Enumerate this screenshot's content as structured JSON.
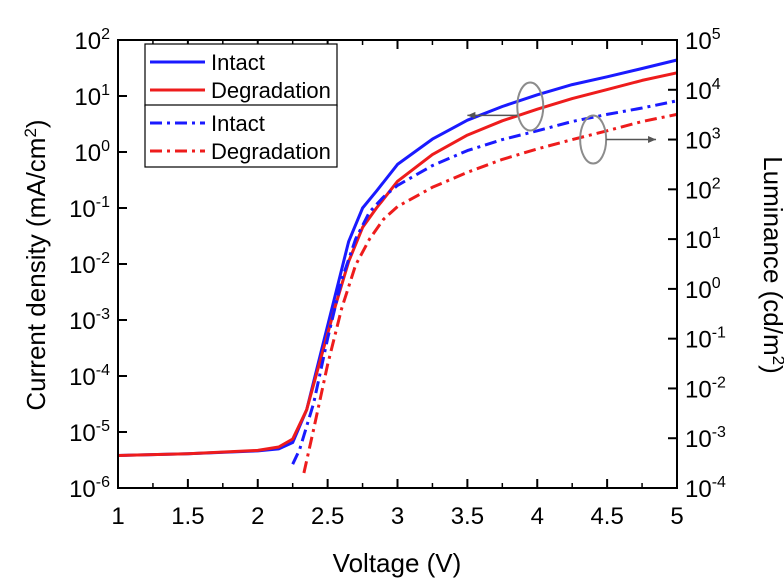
{
  "chart_data": {
    "type": "line",
    "xlabel": "Voltage (V)",
    "ylabel_left": {
      "main": "Current density (mA/cm",
      "sup": "2",
      "close": ")"
    },
    "ylabel_right": {
      "main": "Luminance (cd/m",
      "sup": "2",
      "close": ")"
    },
    "xlim": [
      1,
      5
    ],
    "xticks": [
      "1",
      "1.5",
      "2",
      "2.5",
      "3",
      "3.5",
      "4",
      "4.5",
      "5"
    ],
    "y_left": {
      "scale": "log",
      "lim_exp": [
        -6,
        2
      ],
      "tick_base": "10",
      "tick_exps": [
        "-6",
        "-5",
        "-4",
        "-3",
        "-2",
        "-1",
        "0",
        "1",
        "2"
      ]
    },
    "y_right": {
      "scale": "log",
      "lim_exp": [
        -4,
        5
      ],
      "tick_base": "10",
      "tick_exps": [
        "-4",
        "-3",
        "-2",
        "-1",
        "0",
        "1",
        "2",
        "3",
        "4",
        "5"
      ]
    },
    "legend": {
      "placement": "top-left",
      "groups": [
        [
          {
            "label": "Intact",
            "color": "#1a1aff",
            "style": "solid"
          },
          {
            "label": "Degradation",
            "color": "#ee1c1c",
            "style": "solid"
          }
        ],
        [
          {
            "label": "Intact",
            "color": "#1a1aff",
            "style": "dashdot"
          },
          {
            "label": "Degradation",
            "color": "#ee1c1c",
            "style": "dashdot"
          }
        ]
      ]
    },
    "series": [
      {
        "axis": "left",
        "color": "#1a1aff",
        "style": "solid",
        "x": [
          1.0,
          1.5,
          2.0,
          2.15,
          2.25,
          2.35,
          2.45,
          2.55,
          2.65,
          2.75,
          2.85,
          3.0,
          3.25,
          3.5,
          3.75,
          4.0,
          4.25,
          4.5,
          4.75,
          5.0
        ],
        "y": [
          3.8e-06,
          4.1e-06,
          4.6e-06,
          5e-06,
          6.5e-06,
          2.5e-05,
          0.00025,
          0.0025,
          0.025,
          0.1,
          0.2,
          0.6,
          1.7,
          3.7,
          6.5,
          10.5,
          16,
          22,
          31,
          44
        ]
      },
      {
        "axis": "left",
        "color": "#ee1c1c",
        "style": "solid",
        "x": [
          1.0,
          1.5,
          2.0,
          2.15,
          2.25,
          2.35,
          2.45,
          2.55,
          2.65,
          2.75,
          2.85,
          3.0,
          3.25,
          3.5,
          3.75,
          4.0,
          4.25,
          4.5,
          4.75,
          5.0
        ],
        "y": [
          3.8e-06,
          4.1e-06,
          4.7e-06,
          5.4e-06,
          7.5e-06,
          2.5e-05,
          0.0002,
          0.0016,
          0.011,
          0.045,
          0.1,
          0.3,
          0.9,
          2.0,
          3.6,
          5.8,
          9,
          13,
          19,
          26
        ]
      },
      {
        "axis": "right",
        "color": "#1a1aff",
        "style": "dashdot",
        "x": [
          2.25,
          2.3,
          2.4,
          2.5,
          2.6,
          2.7,
          2.8,
          2.9,
          3.0,
          3.25,
          3.5,
          3.75,
          4.0,
          4.25,
          4.5,
          4.75,
          5.0
        ],
        "y": [
          0.0003,
          0.0006,
          0.005,
          0.1,
          1.5,
          10,
          35,
          70,
          120,
          300,
          600,
          1000,
          1500,
          2300,
          3200,
          4300,
          6000
        ]
      },
      {
        "axis": "right",
        "color": "#ee1c1c",
        "style": "dashdot",
        "x": [
          2.33,
          2.4,
          2.5,
          2.6,
          2.7,
          2.8,
          2.9,
          3.0,
          3.25,
          3.5,
          3.75,
          4.0,
          4.25,
          4.5,
          4.75,
          5.0
        ],
        "y": [
          0.0002,
          0.0015,
          0.03,
          0.4,
          3,
          10,
          25,
          45,
          110,
          220,
          400,
          650,
          1000,
          1500,
          2300,
          3200
        ]
      }
    ],
    "annotations": [
      {
        "type": "ellipse-arrow",
        "target_axis": "left",
        "ellipse_center": [
          3.95,
          6.5
        ],
        "arrow_to": [
          3.5,
          4.5
        ]
      },
      {
        "type": "ellipse-arrow",
        "target_axis": "right",
        "ellipse_center": [
          4.4,
          1000
        ],
        "arrow_to": [
          4.85,
          1000
        ]
      }
    ]
  }
}
